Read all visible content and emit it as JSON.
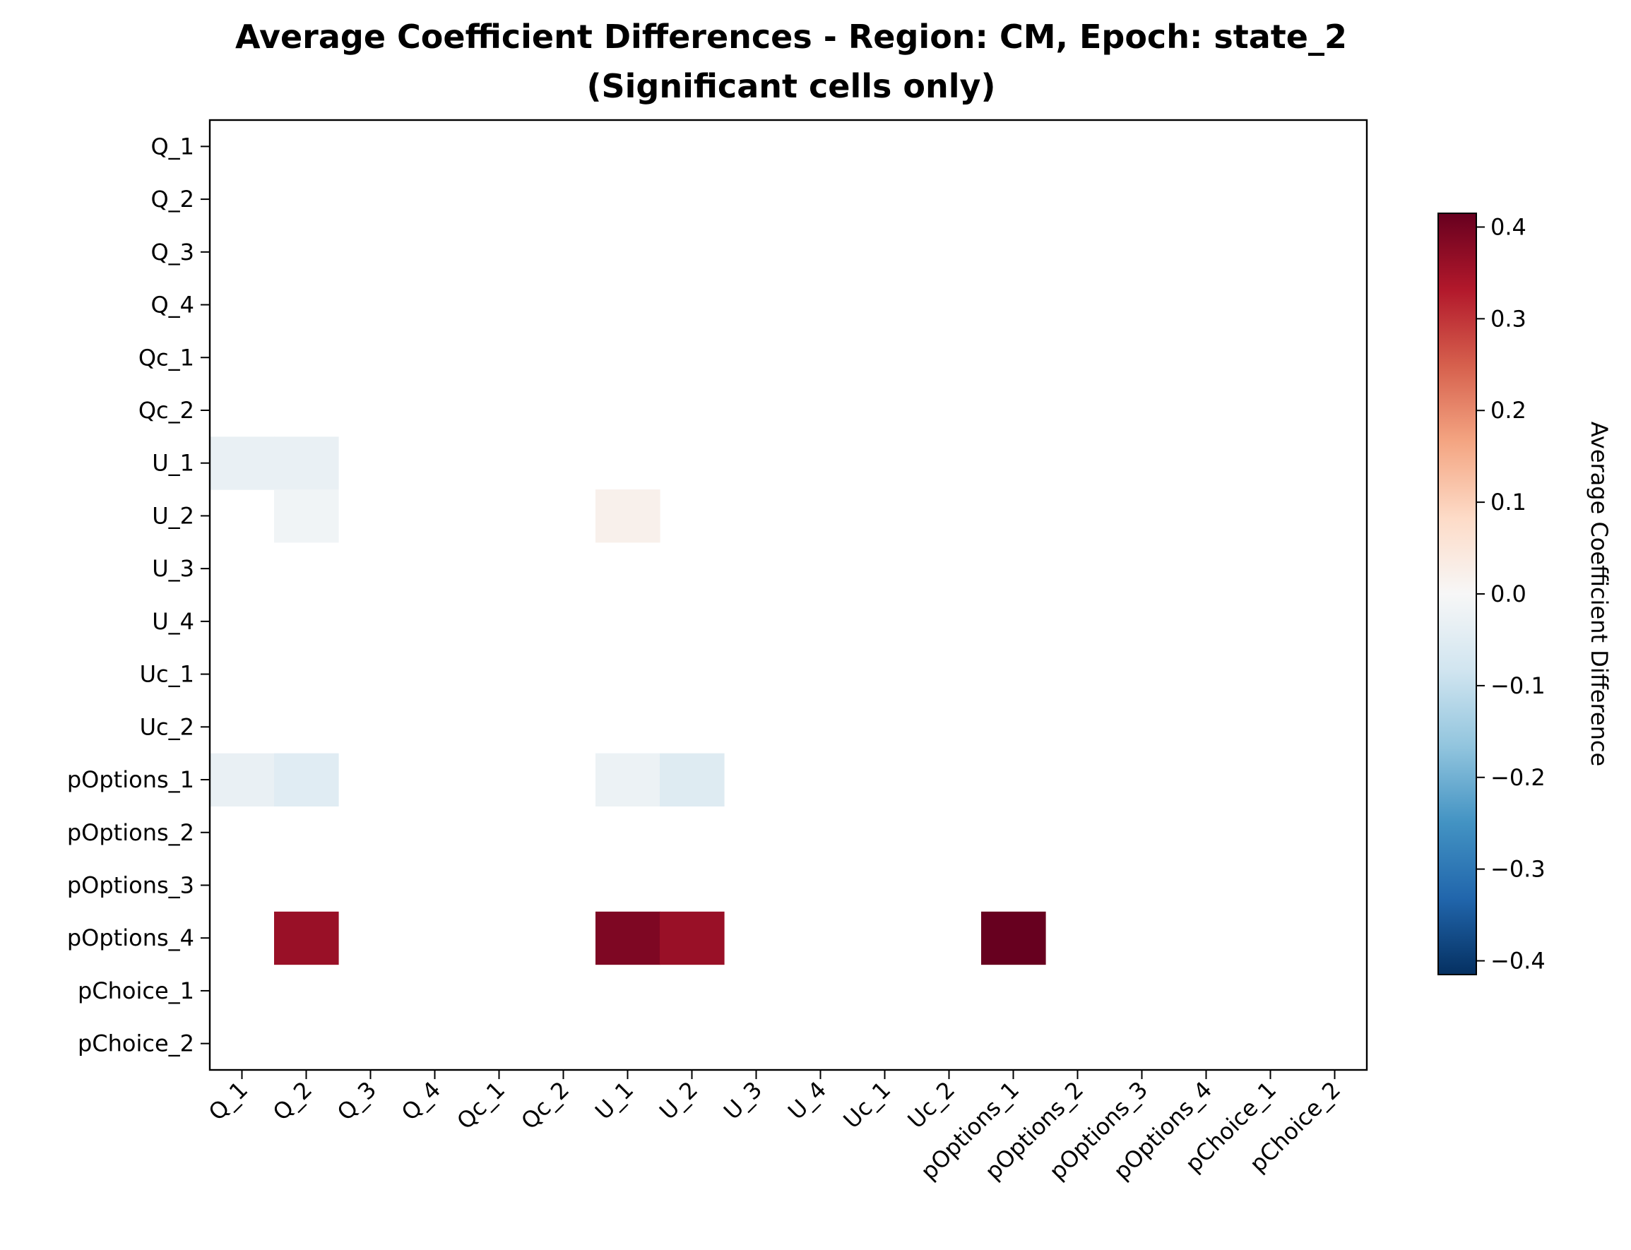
{
  "chart_data": {
    "type": "heatmap",
    "title": "Average Coefficient Differences - Region: CM, Epoch: state_2",
    "subtitle": "(Significant cells only)",
    "x_labels": [
      "Q_1",
      "Q_2",
      "Q_3",
      "Q_4",
      "Qc_1",
      "Qc_2",
      "U_1",
      "U_2",
      "U_3",
      "U_4",
      "Uc_1",
      "Uc_2",
      "pOptions_1",
      "pOptions_2",
      "pOptions_3",
      "pOptions_4",
      "pChoice_1",
      "pChoice_2"
    ],
    "y_labels": [
      "Q_1",
      "Q_2",
      "Q_3",
      "Q_4",
      "Qc_1",
      "Qc_2",
      "U_1",
      "U_2",
      "U_3",
      "U_4",
      "Uc_1",
      "Uc_2",
      "pOptions_1",
      "pOptions_2",
      "pOptions_3",
      "pOptions_4",
      "pChoice_1",
      "pChoice_2"
    ],
    "cells": [
      {
        "row": "U_1",
        "col": "Q_1",
        "value": -0.03
      },
      {
        "row": "U_1",
        "col": "Q_2",
        "value": -0.03
      },
      {
        "row": "U_2",
        "col": "Q_2",
        "value": -0.015
      },
      {
        "row": "U_2",
        "col": "U_1",
        "value": 0.02
      },
      {
        "row": "pOptions_1",
        "col": "Q_1",
        "value": -0.03
      },
      {
        "row": "pOptions_1",
        "col": "Q_2",
        "value": -0.05
      },
      {
        "row": "pOptions_1",
        "col": "U_1",
        "value": -0.025
      },
      {
        "row": "pOptions_1",
        "col": "U_2",
        "value": -0.055
      },
      {
        "row": "pOptions_4",
        "col": "Q_2",
        "value": 0.36
      },
      {
        "row": "pOptions_4",
        "col": "U_1",
        "value": 0.39
      },
      {
        "row": "pOptions_4",
        "col": "U_2",
        "value": 0.36
      },
      {
        "row": "pOptions_4",
        "col": "pOptions_1",
        "value": 0.415
      }
    ],
    "colorbar": {
      "label": "Average Coefficient Difference",
      "range": [
        -0.415,
        0.415
      ],
      "ticks": [
        0.4,
        0.3,
        0.2,
        0.1,
        0.0,
        -0.1,
        -0.2,
        -0.3,
        -0.4
      ],
      "tick_labels": [
        "0.4",
        "0.3",
        "0.2",
        "0.1",
        "0.0",
        "−0.1",
        "−0.2",
        "−0.3",
        "−0.4"
      ],
      "colormap": "RdBu_r",
      "colormap_stops": [
        "#053061",
        "#2166ac",
        "#4393c3",
        "#92c5de",
        "#d1e5f0",
        "#f7f7f7",
        "#fddbc7",
        "#f4a582",
        "#d6604d",
        "#b2182b",
        "#67001f"
      ]
    },
    "grid": false,
    "legend": "colorbar-right"
  }
}
